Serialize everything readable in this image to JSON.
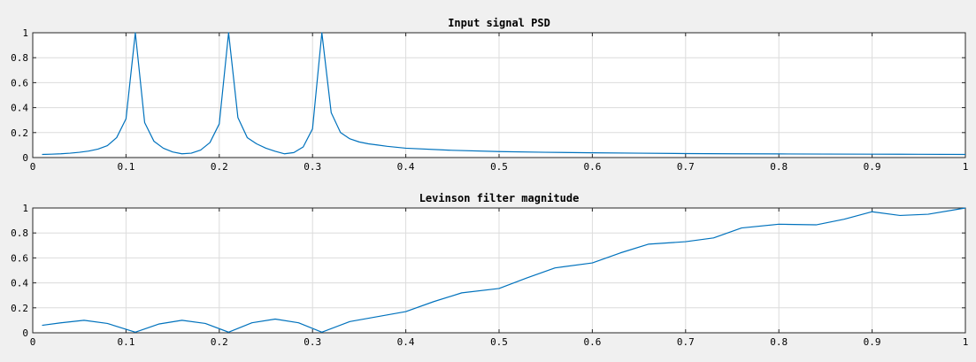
{
  "chart_data": [
    {
      "type": "line",
      "title": "Input signal PSD",
      "xlabel": "",
      "ylabel": "",
      "xlim": [
        0,
        1
      ],
      "ylim": [
        0,
        1
      ],
      "xticks": [
        "0",
        "0.1",
        "0.2",
        "0.3",
        "0.4",
        "0.5",
        "0.6",
        "0.7",
        "0.8",
        "0.9",
        "1"
      ],
      "yticks": [
        "0",
        "0.2",
        "0.4",
        "0.6",
        "0.8",
        "1"
      ],
      "grid": true,
      "series": [
        {
          "color": "#0072bd",
          "x": [
            0.01,
            0.02,
            0.03,
            0.04,
            0.05,
            0.06,
            0.07,
            0.08,
            0.09,
            0.1,
            0.11,
            0.12,
            0.13,
            0.14,
            0.15,
            0.16,
            0.17,
            0.18,
            0.19,
            0.2,
            0.21,
            0.22,
            0.23,
            0.24,
            0.25,
            0.26,
            0.27,
            0.28,
            0.29,
            0.3,
            0.31,
            0.32,
            0.33,
            0.34,
            0.35,
            0.36,
            0.37,
            0.38,
            0.4,
            0.45,
            0.5,
            0.55,
            0.6,
            0.65,
            0.7,
            0.75,
            0.8,
            0.85,
            0.9,
            0.95,
            1.0
          ],
          "y": [
            0.025,
            0.027,
            0.03,
            0.035,
            0.042,
            0.052,
            0.068,
            0.095,
            0.16,
            0.31,
            1.0,
            0.28,
            0.13,
            0.075,
            0.045,
            0.03,
            0.035,
            0.06,
            0.12,
            0.27,
            1.0,
            0.32,
            0.16,
            0.11,
            0.075,
            0.05,
            0.03,
            0.04,
            0.085,
            0.23,
            1.0,
            0.36,
            0.2,
            0.15,
            0.125,
            0.11,
            0.1,
            0.09,
            0.075,
            0.058,
            0.048,
            0.042,
            0.038,
            0.035,
            0.032,
            0.03,
            0.029,
            0.028,
            0.027,
            0.026,
            0.025
          ]
        }
      ]
    },
    {
      "type": "line",
      "title": "Levinson filter magnitude",
      "xlabel": "",
      "ylabel": "",
      "xlim": [
        0,
        1
      ],
      "ylim": [
        0,
        1
      ],
      "xticks": [
        "0",
        "0.1",
        "0.2",
        "0.3",
        "0.4",
        "0.5",
        "0.6",
        "0.7",
        "0.8",
        "0.9",
        "1"
      ],
      "yticks": [
        "0",
        "0.2",
        "0.4",
        "0.6",
        "0.8",
        "1"
      ],
      "grid": true,
      "series": [
        {
          "color": "#0072bd",
          "x": [
            0.01,
            0.03,
            0.055,
            0.08,
            0.11,
            0.135,
            0.16,
            0.185,
            0.21,
            0.235,
            0.26,
            0.285,
            0.31,
            0.34,
            0.37,
            0.4,
            0.43,
            0.46,
            0.5,
            0.53,
            0.56,
            0.6,
            0.63,
            0.66,
            0.7,
            0.73,
            0.76,
            0.8,
            0.84,
            0.87,
            0.9,
            0.93,
            0.96,
            1.0
          ],
          "y": [
            0.06,
            0.08,
            0.1,
            0.075,
            0.005,
            0.07,
            0.1,
            0.075,
            0.005,
            0.08,
            0.11,
            0.08,
            0.005,
            0.09,
            0.13,
            0.17,
            0.25,
            0.32,
            0.355,
            0.44,
            0.52,
            0.56,
            0.64,
            0.71,
            0.73,
            0.76,
            0.84,
            0.87,
            0.865,
            0.91,
            0.97,
            0.94,
            0.95,
            1.0
          ]
        }
      ]
    }
  ]
}
